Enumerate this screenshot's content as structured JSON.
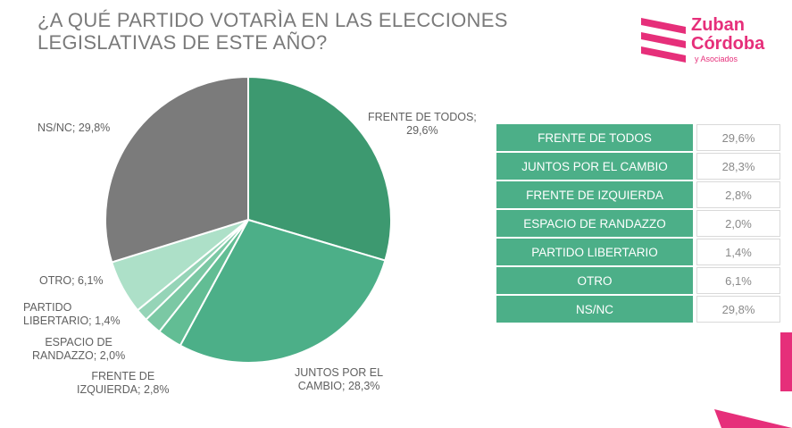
{
  "title_lines": [
    "¿A QUÉ PARTIDO VOTARÌA EN LAS ELECCIONES",
    "LEGISLATIVAS DE ESTE AÑO?"
  ],
  "logo": {
    "name1": "Zuban",
    "name2": "Córdoba",
    "sub": "y Asociados",
    "color": "#e62f7a"
  },
  "chart_data": {
    "type": "pie",
    "start": "12 o'clock, clockwise",
    "slices": [
      {
        "label": "FRENTE DE TODOS",
        "value": 29.6,
        "color": "#3d9970"
      },
      {
        "label": "JUNTOS POR EL CAMBIO",
        "value": 28.3,
        "color": "#4caf88"
      },
      {
        "label": "FRENTE DE IZQUIERDA",
        "value": 2.8,
        "color": "#62bd94"
      },
      {
        "label": "ESPACIO DE RANDAZZO",
        "value": 2.0,
        "color": "#7bc8a4"
      },
      {
        "label": "PARTIDO LIBERTARIO",
        "value": 1.4,
        "color": "#95d4b7"
      },
      {
        "label": "OTRO",
        "value": 6.1,
        "color": "#ade0c8"
      },
      {
        "label": "NS/NC",
        "value": 29.8,
        "color": "#7b7b7b"
      }
    ]
  },
  "pie_labels": [
    {
      "lines": [
        "FRENTE DE TODOS;",
        "29,6%"
      ]
    },
    {
      "lines": [
        "JUNTOS POR EL",
        "CAMBIO; 28,3%"
      ]
    },
    {
      "lines": [
        "FRENTE DE",
        "IZQUIERDA; 2,8%"
      ]
    },
    {
      "lines": [
        "ESPACIO DE",
        "RANDAZZO; 2,0%"
      ]
    },
    {
      "lines": [
        "PARTIDO",
        "LIBERTARIO; 1,4%"
      ]
    },
    {
      "lines": [
        "OTRO; 6,1%"
      ]
    },
    {
      "lines": [
        "NS/NC; 29,8%"
      ]
    }
  ],
  "table": [
    {
      "name": "FRENTE DE TODOS",
      "value": "29,6%"
    },
    {
      "name": "JUNTOS POR EL CAMBIO",
      "value": "28,3%"
    },
    {
      "name": "FRENTE DE IZQUIERDA",
      "value": "2,8%"
    },
    {
      "name": "ESPACIO DE RANDAZZO",
      "value": "2,0%"
    },
    {
      "name": "PARTIDO LIBERTARIO",
      "value": "1,4%"
    },
    {
      "name": "OTRO",
      "value": "6,1%"
    },
    {
      "name": "NS/NC",
      "value": "29,8%"
    }
  ]
}
